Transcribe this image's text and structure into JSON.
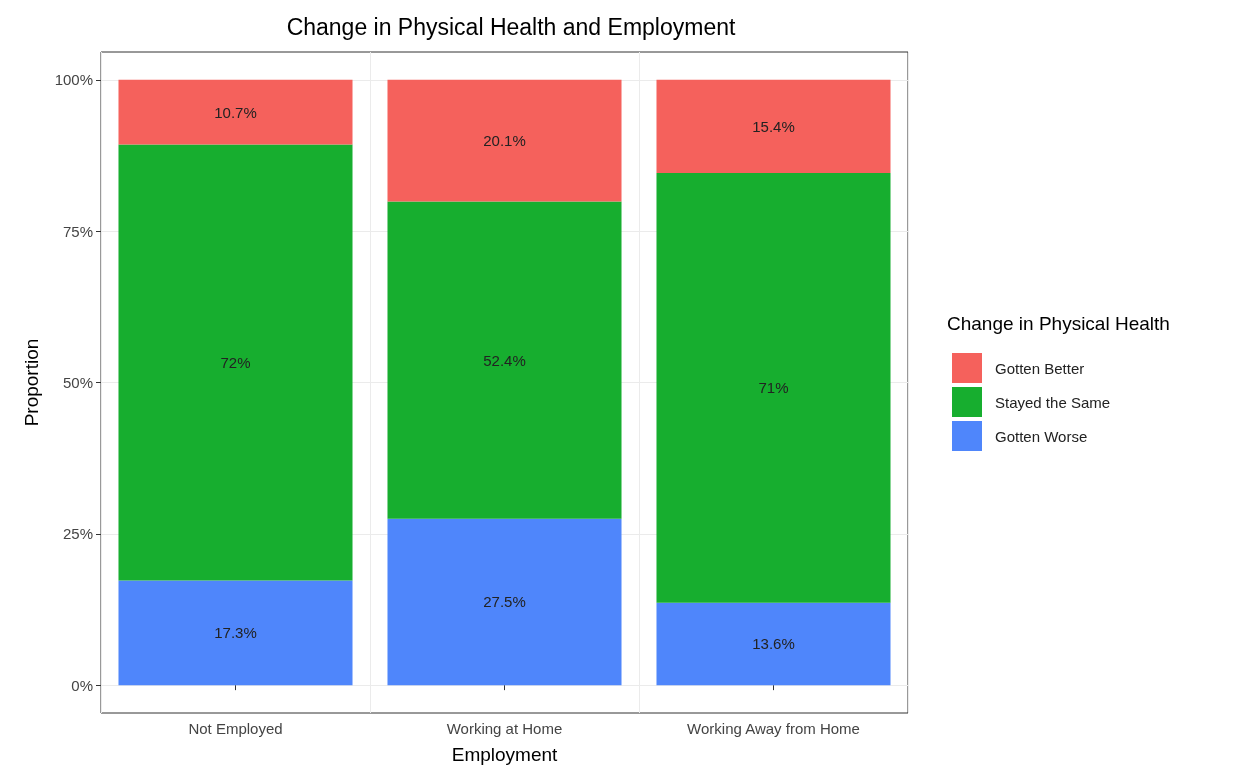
{
  "chart_data": {
    "type": "bar",
    "title": "Change in Physical Health and Employment",
    "xlabel": "Employment",
    "ylabel": "Proportion",
    "legend_title": "Change in Physical Health",
    "categories": [
      "Not Employed",
      "Working at Home",
      "Working Away from Home"
    ],
    "stacked": true,
    "series": [
      {
        "name": "Gotten Worse",
        "color": "#4f86fb",
        "values": [
          17.3,
          27.5,
          13.6
        ],
        "value_labels": [
          "17.3%",
          "27.5%",
          "13.6%"
        ]
      },
      {
        "name": "Stayed the Same",
        "color": "#17ae2f",
        "values": [
          72,
          52.4,
          71
        ],
        "value_labels": [
          "72%",
          "52.4%",
          "71%"
        ]
      },
      {
        "name": "Gotten Better",
        "color": "#f5615c",
        "values": [
          10.7,
          20.1,
          15.4
        ],
        "value_labels": [
          "10.7%",
          "20.1%",
          "15.4%"
        ]
      }
    ],
    "ylim": [
      -4.6,
      104.6
    ],
    "yticks": [
      {
        "value": 0,
        "label": "0%"
      },
      {
        "value": 25,
        "label": "25%"
      },
      {
        "value": 50,
        "label": "50%"
      },
      {
        "value": 75,
        "label": "75%"
      },
      {
        "value": 100,
        "label": "100%"
      }
    ],
    "grid": true,
    "legend": "right"
  }
}
